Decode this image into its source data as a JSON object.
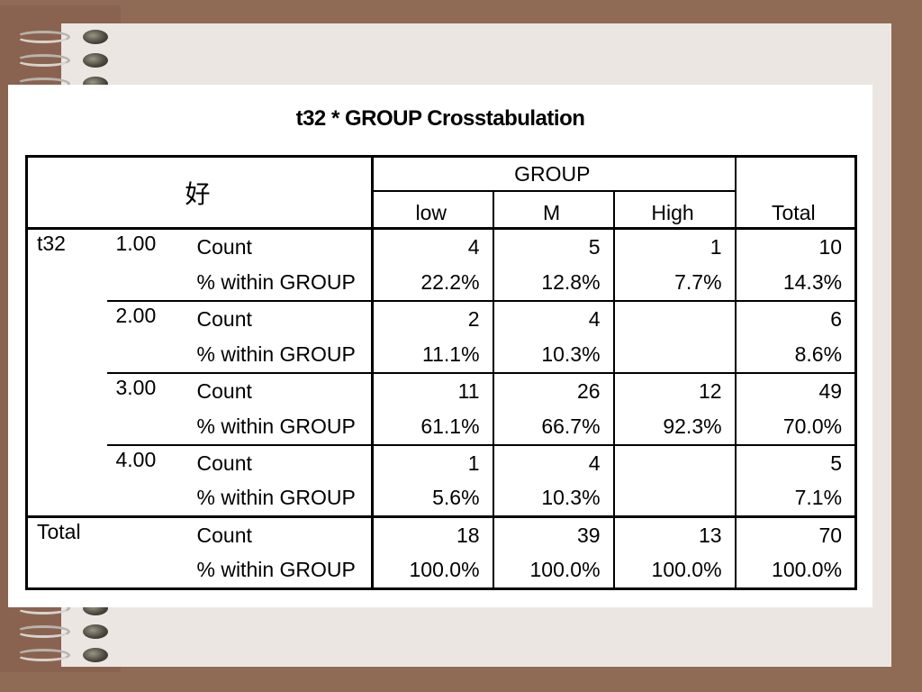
{
  "title": "t32 * GROUP Crosstabulation",
  "corner_label": "好",
  "group_header": "GROUP",
  "columns": [
    "low",
    "M",
    "High"
  ],
  "total_header": "Total",
  "row_variable": "t32",
  "stat_labels": {
    "count": "Count",
    "pct": "% within GROUP"
  },
  "rows": [
    {
      "value": "1.00",
      "count": [
        "4",
        "5",
        "1",
        "10"
      ],
      "pct": [
        "22.2%",
        "12.8%",
        "7.7%",
        "14.3%"
      ]
    },
    {
      "value": "2.00",
      "count": [
        "2",
        "4",
        "",
        "6"
      ],
      "pct": [
        "11.1%",
        "10.3%",
        "",
        "8.6%"
      ]
    },
    {
      "value": "3.00",
      "count": [
        "11",
        "26",
        "12",
        "49"
      ],
      "pct": [
        "61.1%",
        "66.7%",
        "92.3%",
        "70.0%"
      ]
    },
    {
      "value": "4.00",
      "count": [
        "1",
        "4",
        "",
        "5"
      ],
      "pct": [
        "5.6%",
        "10.3%",
        "",
        "7.1%"
      ]
    }
  ],
  "total_row": {
    "label": "Total",
    "count": [
      "18",
      "39",
      "13",
      "70"
    ],
    "pct": [
      "100.0%",
      "100.0%",
      "100.0%",
      "100.0%"
    ]
  },
  "colors": {
    "background": "#8f6b56",
    "paper": "#ece6e2",
    "card": "#ffffff"
  }
}
